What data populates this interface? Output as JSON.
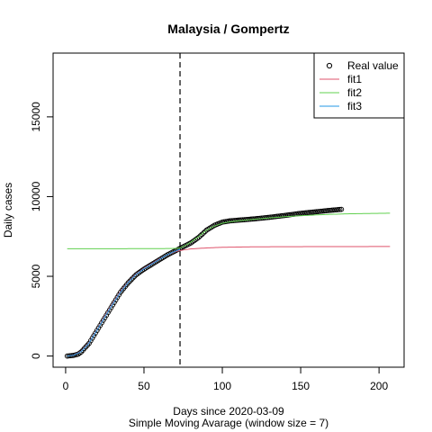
{
  "chart_data": {
    "type": "line",
    "title": "Malaysia / Gompertz",
    "xlabel": "Days since 2020-03-09",
    "xlabel_sub": "Simple Moving Avarage (window size = 7)",
    "ylabel": "Daily cases",
    "xlim": [
      -8,
      216
    ],
    "ylim": [
      -700,
      19000
    ],
    "x_ticks": [
      0,
      50,
      100,
      150,
      200
    ],
    "y_ticks": [
      0,
      5000,
      10000,
      15000
    ],
    "vline_x": 73,
    "legend": {
      "position": "top-right",
      "entries": [
        {
          "label": "Real value",
          "symbol": "circle",
          "color": "#000000"
        },
        {
          "label": "fit1",
          "symbol": "line",
          "color": "#DF536B"
        },
        {
          "label": "fit2",
          "symbol": "line",
          "color": "#61D04F"
        },
        {
          "label": "fit3",
          "symbol": "line",
          "color": "#2297E6"
        }
      ]
    },
    "series": [
      {
        "name": "Real value",
        "kind": "points",
        "color": "#000000",
        "x_range": [
          1,
          176
        ],
        "anchors_x": [
          1,
          5,
          8,
          10,
          15,
          20,
          25,
          30,
          35,
          40,
          45,
          50,
          55,
          60,
          65,
          70,
          73,
          75,
          80,
          85,
          90,
          95,
          100,
          105,
          110,
          120,
          130,
          140,
          150,
          160,
          170,
          176
        ],
        "anchors_y": [
          0,
          40,
          120,
          260,
          800,
          1600,
          2400,
          3200,
          4000,
          4600,
          5100,
          5450,
          5750,
          6050,
          6350,
          6600,
          6750,
          6850,
          7100,
          7450,
          7900,
          8200,
          8400,
          8480,
          8520,
          8600,
          8700,
          8820,
          8950,
          9050,
          9150,
          9200
        ]
      },
      {
        "name": "fit1",
        "kind": "line",
        "color": "#DF536B",
        "x_range": [
          1,
          207
        ],
        "anchors_x": [
          1,
          5,
          10,
          15,
          20,
          25,
          30,
          35,
          40,
          45,
          50,
          55,
          60,
          65,
          70,
          73,
          80,
          90,
          100,
          120,
          150,
          180,
          207
        ],
        "anchors_y": [
          0,
          60,
          300,
          850,
          1650,
          2500,
          3300,
          4050,
          4650,
          5150,
          5500,
          5800,
          6100,
          6350,
          6550,
          6620,
          6720,
          6780,
          6820,
          6850,
          6860,
          6865,
          6870
        ]
      },
      {
        "name": "fit2",
        "kind": "line",
        "color": "#61D04F",
        "x_range": [
          1,
          207
        ],
        "anchors_x": [
          1,
          60,
          70,
          73,
          76,
          80,
          85,
          90,
          95,
          100,
          105,
          110,
          120,
          130,
          140,
          150,
          160,
          170,
          180,
          207
        ],
        "anchors_y": [
          6730,
          6735,
          6750,
          6780,
          6900,
          7150,
          7500,
          7900,
          8150,
          8330,
          8420,
          8480,
          8570,
          8660,
          8740,
          8800,
          8850,
          8890,
          8920,
          8960
        ]
      },
      {
        "name": "fit3",
        "kind": "line",
        "color": "#2297E6",
        "x_range": [
          1,
          73
        ],
        "anchors_x": [
          1,
          5,
          10,
          15,
          20,
          25,
          30,
          35,
          40,
          45,
          50,
          55,
          60,
          65,
          70,
          73
        ],
        "anchors_y": [
          0,
          50,
          280,
          820,
          1620,
          2450,
          3250,
          4000,
          4620,
          5120,
          5470,
          5770,
          6070,
          6360,
          6580,
          6700
        ]
      }
    ]
  }
}
